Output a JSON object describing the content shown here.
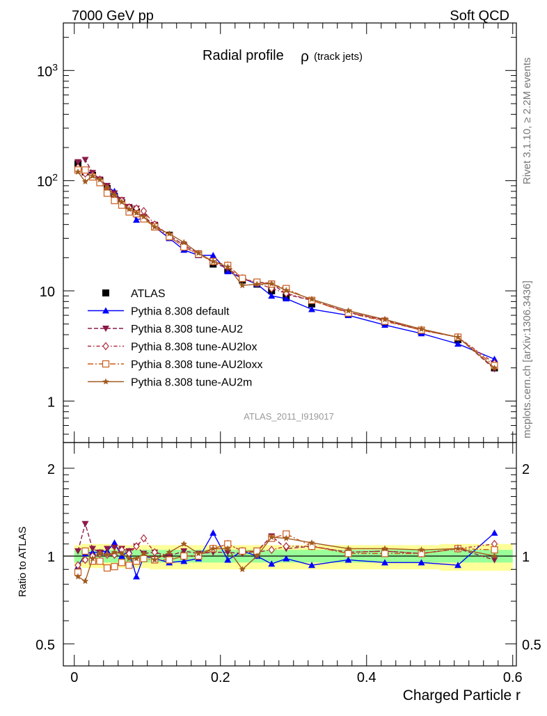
{
  "header": {
    "left": "7000 GeV pp",
    "right": "Soft QCD"
  },
  "side_labels": {
    "rivet": "Rivet 3.1.10, ≥ 2.2M events",
    "mcplots": "mcplots.cern.ch [arXiv:1306.3436]"
  },
  "chart_data": [
    {
      "type": "line",
      "panel": "main",
      "title": "Radial profile",
      "title_symbol": "ρ",
      "title_suffix": "(track jets)",
      "xlabel": "Charged Particle r",
      "ylabel": "",
      "log_y": true,
      "xlim": [
        -0.015,
        0.605
      ],
      "ylim": [
        0.42,
        2700
      ],
      "y_ticks": [
        1,
        10,
        100,
        1000
      ],
      "y_tick_labels": [
        "1",
        "10",
        "10^2",
        "10^3"
      ],
      "x_ticks": [
        0,
        0.2,
        0.4,
        0.6
      ],
      "x_tick_labels": [
        "0",
        "0.2",
        "0.4",
        "0.6"
      ],
      "legend_position": "lower-left",
      "watermark": "ATLAS_2011_I919017",
      "x": [
        0.005,
        0.015,
        0.025,
        0.035,
        0.045,
        0.055,
        0.065,
        0.075,
        0.085,
        0.095,
        0.11,
        0.13,
        0.15,
        0.17,
        0.19,
        0.21,
        0.23,
        0.25,
        0.27,
        0.29,
        0.325,
        0.375,
        0.425,
        0.475,
        0.525,
        0.575
      ],
      "series": [
        {
          "name": "ATLAS",
          "color": "#000000",
          "marker": "square-filled",
          "dash": "none",
          "values": [
            142,
            120,
            112,
            100,
            85,
            72,
            63,
            56,
            52,
            46,
            39,
            32,
            25,
            21.5,
            17.5,
            15.5,
            12.5,
            11.5,
            10,
            8.8,
            7.6,
            6.2,
            5.2,
            4.3,
            3.6,
            2.0
          ]
        },
        {
          "name": "Pythia 8.308 default",
          "color": "#0000ff",
          "marker": "triangle-up-filled",
          "dash": "solid",
          "values": [
            135,
            122,
            115,
            104,
            88,
            80,
            63,
            58,
            44,
            46,
            38,
            30,
            23.5,
            21,
            21,
            15,
            13,
            11.5,
            9,
            8.5,
            6.8,
            6.0,
            4.9,
            4.1,
            3.3,
            2.4
          ]
        },
        {
          "name": "Pythia 8.308 tune-AU2",
          "color": "#8b1a4a",
          "marker": "triangle-down-filled",
          "dash": "dash",
          "values": [
            148,
            155,
            118,
            103,
            90,
            77,
            67,
            58,
            56,
            47,
            40,
            32,
            26,
            22,
            18,
            16,
            12.8,
            12,
            11.7,
            9.3,
            8.2,
            6.4,
            5.4,
            4.4,
            3.8,
            1.95
          ]
        },
        {
          "name": "Pythia 8.308 tune-AU2lox",
          "color": "#b02a3a",
          "marker": "diamond-open",
          "dash": "dashdot",
          "values": [
            132,
            116,
            112,
            102,
            86,
            73,
            66,
            57,
            56,
            53,
            40,
            31,
            25,
            21.5,
            18.5,
            17,
            13,
            11.8,
            10.5,
            9.5,
            8.2,
            6.4,
            5.4,
            4.4,
            3.8,
            2.2
          ]
        },
        {
          "name": "Pythia 8.308 tune-AU2loxx",
          "color": "#c85a1a",
          "marker": "square-open",
          "dash": "dashdot2",
          "values": [
            125,
            125,
            108,
            96,
            77,
            66,
            60,
            52,
            50,
            45,
            38,
            31,
            25,
            21.5,
            18.5,
            17,
            13,
            12,
            11.5,
            10.5,
            8.2,
            6.3,
            5.3,
            4.4,
            3.8,
            2.1
          ]
        },
        {
          "name": "Pythia 8.308 tune-AU2m",
          "color": "#a05a1e",
          "marker": "star-filled",
          "dash": "solid",
          "values": [
            120,
            98,
            110,
            102,
            86,
            74,
            64,
            55,
            51,
            47,
            38,
            33,
            27.5,
            22,
            18.5,
            16.5,
            11.2,
            11.5,
            11.6,
            10.1,
            8.4,
            6.6,
            5.5,
            4.5,
            3.8,
            2.0
          ]
        }
      ]
    },
    {
      "type": "line",
      "panel": "ratio",
      "xlabel": "Charged Particle r",
      "ylabel": "Ratio to ATLAS",
      "log_y": true,
      "xlim": [
        -0.015,
        0.605
      ],
      "ylim": [
        0.42,
        2.45
      ],
      "y_ticks": [
        0.5,
        1,
        2
      ],
      "y_tick_labels": [
        "0.5",
        "1",
        "2"
      ],
      "x_ticks": [
        0,
        0.2,
        0.4,
        0.6
      ],
      "x_tick_labels": [
        "0",
        "0.2",
        "0.4",
        "0.6"
      ],
      "bands": {
        "inner_color": "#99ff99",
        "outer_color": "#ffff99",
        "inner": [
          [
            0.95,
            1.05
          ],
          [
            0.95,
            1.05
          ],
          [
            0.95,
            1.05
          ],
          [
            0.95,
            1.05
          ],
          [
            0.95,
            1.05
          ],
          [
            0.95,
            1.05
          ],
          [
            0.95,
            1.05
          ],
          [
            0.95,
            1.05
          ],
          [
            0.95,
            1.05
          ],
          [
            0.95,
            1.05
          ],
          [
            0.95,
            1.05
          ],
          [
            0.95,
            1.05
          ],
          [
            0.95,
            1.05
          ],
          [
            0.95,
            1.05
          ],
          [
            0.95,
            1.05
          ],
          [
            0.95,
            1.05
          ],
          [
            0.95,
            1.05
          ],
          [
            0.95,
            1.05
          ],
          [
            0.95,
            1.05
          ],
          [
            0.95,
            1.05
          ],
          [
            0.95,
            1.05
          ],
          [
            0.95,
            1.05
          ],
          [
            0.95,
            1.05
          ],
          [
            0.95,
            1.05
          ],
          [
            0.95,
            1.05
          ],
          [
            0.95,
            1.05
          ]
        ],
        "outer": [
          [
            0.92,
            1.09
          ],
          [
            0.91,
            1.1
          ],
          [
            0.91,
            1.1
          ],
          [
            0.91,
            1.1
          ],
          [
            0.91,
            1.1
          ],
          [
            0.91,
            1.09
          ],
          [
            0.91,
            1.09
          ],
          [
            0.91,
            1.09
          ],
          [
            0.91,
            1.09
          ],
          [
            0.91,
            1.09
          ],
          [
            0.9,
            1.09
          ],
          [
            0.9,
            1.09
          ],
          [
            0.9,
            1.09
          ],
          [
            0.9,
            1.09
          ],
          [
            0.9,
            1.09
          ],
          [
            0.9,
            1.09
          ],
          [
            0.9,
            1.09
          ],
          [
            0.9,
            1.09
          ],
          [
            0.9,
            1.09
          ],
          [
            0.9,
            1.09
          ],
          [
            0.9,
            1.09
          ],
          [
            0.9,
            1.09
          ],
          [
            0.9,
            1.09
          ],
          [
            0.9,
            1.09
          ],
          [
            0.89,
            1.1
          ],
          [
            0.89,
            1.1
          ]
        ]
      },
      "series": [
        {
          "name": "Pythia 8.308 default",
          "color": "#0000ff",
          "marker": "triangle-up-filled",
          "dash": "solid",
          "values": [
            0.92,
            1.02,
            1.03,
            1.03,
            1.04,
            1.11,
            1.0,
            1.04,
            0.85,
            1.0,
            0.98,
            0.95,
            0.96,
            0.98,
            1.2,
            0.97,
            1.04,
            1.0,
            0.94,
            0.98,
            0.93,
            0.97,
            0.95,
            0.95,
            0.93,
            1.2
          ]
        },
        {
          "name": "Pythia 8.308 tune-AU2",
          "color": "#8b1a4a",
          "marker": "triangle-down-filled",
          "dash": "dash",
          "values": [
            1.04,
            1.29,
            1.06,
            1.03,
            1.06,
            1.07,
            1.06,
            1.04,
            1.08,
            1.02,
            1.03,
            1.0,
            1.04,
            1.02,
            1.03,
            1.03,
            1.02,
            1.04,
            1.17,
            1.06,
            1.08,
            1.03,
            1.04,
            1.02,
            1.06,
            0.97
          ]
        },
        {
          "name": "Pythia 8.308 tune-AU2lox",
          "color": "#b02a3a",
          "marker": "diamond-open",
          "dash": "dashdot",
          "values": [
            0.93,
            0.97,
            1.0,
            1.02,
            1.01,
            1.01,
            1.05,
            1.02,
            1.08,
            1.15,
            1.03,
            0.97,
            1.0,
            1.0,
            1.06,
            1.1,
            1.04,
            1.03,
            1.05,
            1.08,
            1.08,
            1.03,
            1.04,
            1.02,
            1.06,
            1.1
          ]
        },
        {
          "name": "Pythia 8.308 tune-AU2loxx",
          "color": "#c85a1a",
          "marker": "square-open",
          "dash": "dashdot2",
          "values": [
            0.88,
            1.04,
            0.96,
            0.96,
            0.91,
            0.92,
            0.95,
            0.93,
            0.96,
            0.98,
            0.97,
            0.97,
            1.0,
            1.0,
            1.06,
            1.1,
            1.04,
            1.04,
            1.15,
            1.19,
            1.08,
            1.02,
            1.02,
            1.02,
            1.06,
            1.05
          ]
        },
        {
          "name": "Pythia 8.308 tune-AU2m",
          "color": "#a05a1e",
          "marker": "star-filled",
          "dash": "solid",
          "values": [
            0.85,
            0.82,
            0.98,
            1.02,
            1.01,
            1.03,
            1.02,
            0.98,
            0.98,
            1.02,
            0.97,
            1.03,
            1.1,
            1.02,
            1.06,
            1.06,
            0.9,
            1.0,
            1.16,
            1.15,
            1.11,
            1.06,
            1.06,
            1.05,
            1.06,
            1.0
          ]
        }
      ]
    }
  ]
}
